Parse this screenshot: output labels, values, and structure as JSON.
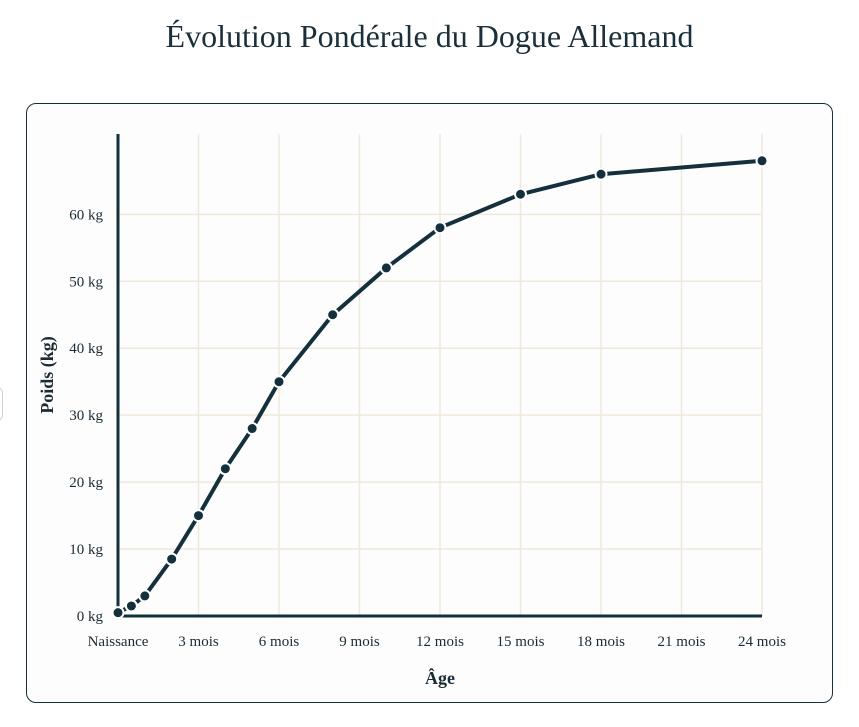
{
  "chart_data": {
    "type": "line",
    "title": "Évolution Pondérale du Dogue Allemand",
    "xlabel": "Âge",
    "ylabel": "Poids (kg)",
    "x_ticks": [
      {
        "value": 0,
        "label": "Naissance"
      },
      {
        "value": 3,
        "label": "3 mois"
      },
      {
        "value": 6,
        "label": "6 mois"
      },
      {
        "value": 9,
        "label": "9 mois"
      },
      {
        "value": 12,
        "label": "12 mois"
      },
      {
        "value": 15,
        "label": "15 mois"
      },
      {
        "value": 18,
        "label": "18 mois"
      },
      {
        "value": 21,
        "label": "21 mois"
      },
      {
        "value": 24,
        "label": "24 mois"
      }
    ],
    "y_ticks": [
      {
        "value": 0,
        "label": "0 kg"
      },
      {
        "value": 10,
        "label": "10 kg"
      },
      {
        "value": 20,
        "label": "20 kg"
      },
      {
        "value": 30,
        "label": "30 kg"
      },
      {
        "value": 40,
        "label": "40 kg"
      },
      {
        "value": 50,
        "label": "50 kg"
      },
      {
        "value": 60,
        "label": "60 kg"
      }
    ],
    "xlim": [
      0,
      24
    ],
    "ylim": [
      0,
      72
    ],
    "grid": true,
    "series": [
      {
        "x": [
          0,
          0.5,
          1,
          2,
          3,
          4,
          5,
          6,
          8,
          10,
          12,
          15,
          18,
          24
        ],
        "values": [
          0.5,
          1.5,
          3,
          8.5,
          15,
          22,
          28,
          35,
          45,
          52,
          58,
          63,
          66,
          68
        ]
      }
    ],
    "colors": {
      "line": "#14303d",
      "grid": "#efe9da",
      "axis": "#14303d"
    }
  }
}
